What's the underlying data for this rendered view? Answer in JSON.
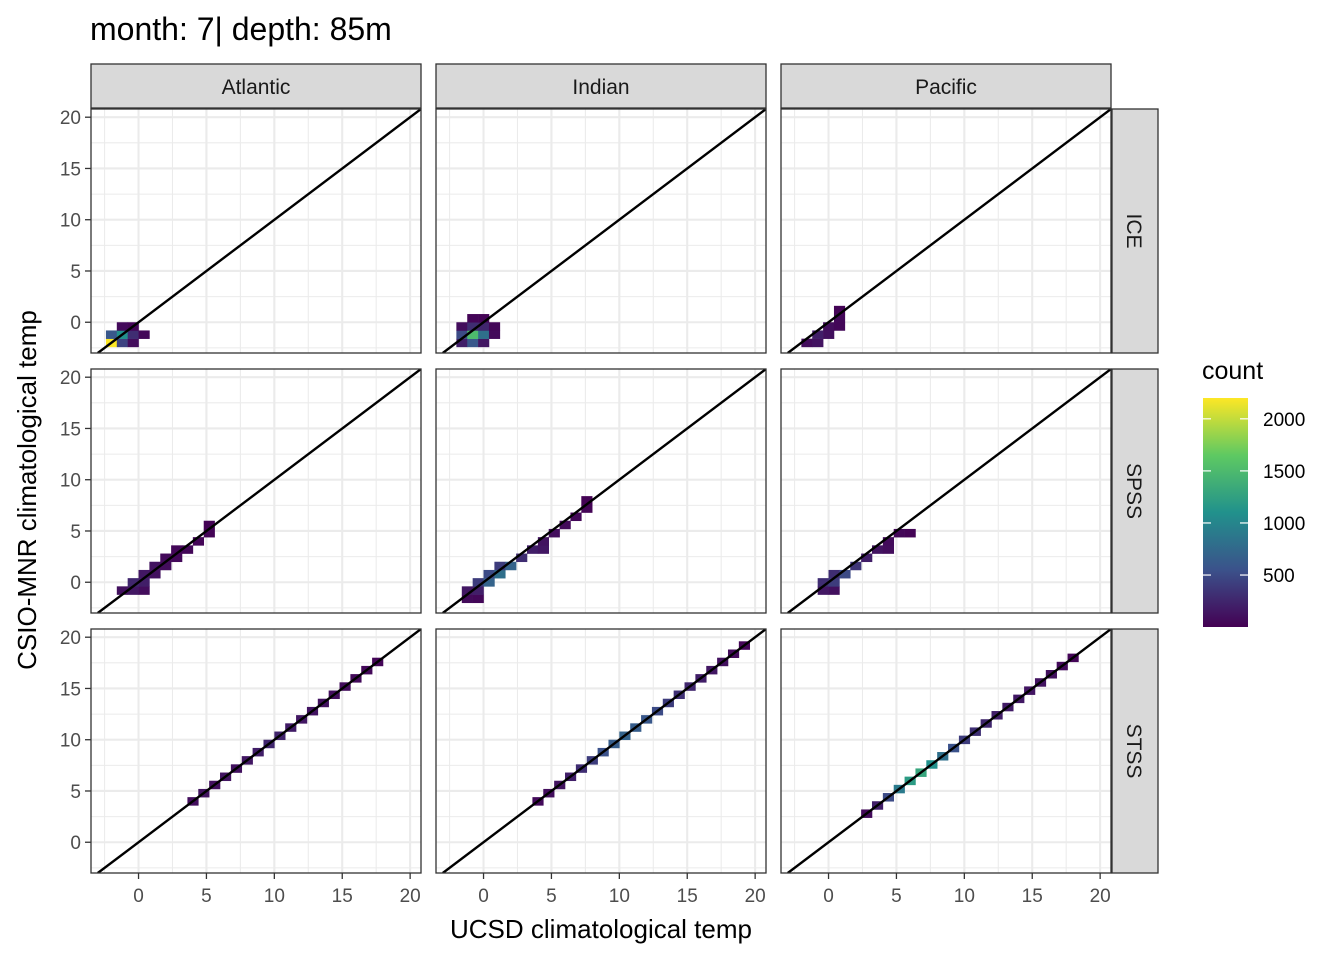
{
  "title": "month: 7| depth: 85m",
  "chart_data": {
    "type": "heatmap",
    "title": "month: 7| depth: 85m",
    "xlabel": "UCSD climatological temp",
    "ylabel": "CSIO-MNR climatological temp",
    "xlim": [
      -3.5,
      20.8
    ],
    "ylim": [
      -3,
      20.8
    ],
    "x_ticks": [
      0,
      5,
      10,
      15,
      20
    ],
    "y_ticks": [
      0,
      5,
      10,
      15,
      20
    ],
    "grid": true,
    "reference_line": "y = x",
    "columns": [
      "Atlantic",
      "Indian",
      "Pacific"
    ],
    "rows": [
      "ICE",
      "SPSS",
      "STSS"
    ],
    "bin_width": 0.8,
    "legend": {
      "title": "count",
      "position": "right",
      "colors": [
        "#440154",
        "#3b528b",
        "#21918c",
        "#5ec962",
        "#fde725"
      ],
      "range": [
        1,
        2200
      ],
      "ticks": [
        500,
        1000,
        1500,
        2000
      ]
    },
    "panels": [
      {
        "col": "Atlantic",
        "row": "ICE",
        "bins": [
          [
            -2,
            -2,
            2200
          ],
          [
            -1.2,
            -2,
            450
          ],
          [
            -0.4,
            -2,
            80
          ],
          [
            -2,
            -1.2,
            600
          ],
          [
            -1.2,
            -1.2,
            1100
          ],
          [
            -0.4,
            -1.2,
            300
          ],
          [
            0.4,
            -1.2,
            40
          ],
          [
            -1.2,
            -0.4,
            60
          ],
          [
            -0.4,
            -0.4,
            30
          ]
        ]
      },
      {
        "col": "Indian",
        "row": "ICE",
        "bins": [
          [
            -1.6,
            -2,
            200
          ],
          [
            -0.8,
            -2,
            600
          ],
          [
            0,
            -2,
            150
          ],
          [
            -1.6,
            -1.2,
            500
          ],
          [
            -0.8,
            -1.2,
            1500
          ],
          [
            0,
            -1.2,
            800
          ],
          [
            0.8,
            -1.2,
            60
          ],
          [
            -1.6,
            -0.4,
            80
          ],
          [
            -0.8,
            -0.4,
            300
          ],
          [
            0,
            -0.4,
            250
          ],
          [
            0.8,
            -0.4,
            40
          ],
          [
            -0.8,
            0.4,
            30
          ],
          [
            0,
            0.4,
            20
          ]
        ]
      },
      {
        "col": "Pacific",
        "row": "ICE",
        "bins": [
          [
            -1.6,
            -2,
            80
          ],
          [
            -0.8,
            -2,
            120
          ],
          [
            -0.8,
            -1.2,
            200
          ],
          [
            0,
            -1.2,
            100
          ],
          [
            0,
            -0.4,
            90
          ],
          [
            0.8,
            -0.4,
            40
          ],
          [
            0.8,
            0.4,
            50
          ],
          [
            0.8,
            1.2,
            20
          ]
        ]
      },
      {
        "col": "Atlantic",
        "row": "SPSS",
        "bins": [
          [
            -1.2,
            -0.8,
            100
          ],
          [
            -0.4,
            -0.8,
            150
          ],
          [
            0.4,
            -0.8,
            80
          ],
          [
            -0.4,
            0,
            250
          ],
          [
            0.4,
            0,
            200
          ],
          [
            0.4,
            0.8,
            150
          ],
          [
            1.2,
            0.8,
            100
          ],
          [
            1.2,
            1.6,
            120
          ],
          [
            2,
            1.6,
            80
          ],
          [
            2,
            2.4,
            60
          ],
          [
            2.8,
            2.4,
            50
          ],
          [
            2.8,
            3.2,
            40
          ],
          [
            3.6,
            3.2,
            40
          ],
          [
            4.4,
            4,
            30
          ],
          [
            5.2,
            4.8,
            20
          ],
          [
            5.2,
            5.6,
            15
          ]
        ]
      },
      {
        "col": "Indian",
        "row": "SPSS",
        "bins": [
          [
            -1.2,
            -1.6,
            60
          ],
          [
            -0.4,
            -1.6,
            40
          ],
          [
            -1.2,
            -0.8,
            150
          ],
          [
            -0.4,
            -0.8,
            200
          ],
          [
            -0.4,
            0,
            400
          ],
          [
            0.4,
            0,
            700
          ],
          [
            0.4,
            0.8,
            500
          ],
          [
            1.2,
            0.8,
            800
          ],
          [
            1.2,
            1.6,
            400
          ],
          [
            2,
            1.6,
            700
          ],
          [
            2.8,
            2.4,
            300
          ],
          [
            3.6,
            3.2,
            200
          ],
          [
            4.4,
            3.2,
            150
          ],
          [
            4.4,
            4,
            120
          ],
          [
            5.2,
            4.8,
            90
          ],
          [
            6,
            5.6,
            60
          ],
          [
            6.8,
            6.4,
            40
          ],
          [
            7.6,
            7.2,
            25
          ],
          [
            7.6,
            8,
            15
          ]
        ]
      },
      {
        "col": "Pacific",
        "row": "SPSS",
        "bins": [
          [
            -0.4,
            -0.8,
            150
          ],
          [
            0.4,
            -0.8,
            100
          ],
          [
            -0.4,
            0,
            300
          ],
          [
            0.4,
            0,
            400
          ],
          [
            0.4,
            0.8,
            300
          ],
          [
            1.2,
            0.8,
            500
          ],
          [
            2,
            1.6,
            350
          ],
          [
            2.8,
            2.4,
            200
          ],
          [
            3.6,
            3.2,
            120
          ],
          [
            4.4,
            3.2,
            80
          ],
          [
            4.4,
            4,
            70
          ],
          [
            5.2,
            4.8,
            40
          ],
          [
            6,
            4.8,
            20
          ]
        ]
      },
      {
        "col": "Atlantic",
        "row": "STSS",
        "bins": [
          [
            4,
            4,
            90
          ],
          [
            4.8,
            4.8,
            120
          ],
          [
            5.6,
            5.6,
            100
          ],
          [
            6.4,
            6.4,
            130
          ],
          [
            7.2,
            7.2,
            110
          ],
          [
            8,
            8,
            150
          ],
          [
            8.8,
            8.8,
            200
          ],
          [
            9.6,
            9.6,
            250
          ],
          [
            10.4,
            10.4,
            230
          ],
          [
            11.2,
            11.2,
            180
          ],
          [
            12,
            12,
            150
          ],
          [
            12.8,
            12.8,
            130
          ],
          [
            13.6,
            13.6,
            110
          ],
          [
            14.4,
            14.4,
            90
          ],
          [
            15.2,
            15.2,
            80
          ],
          [
            16,
            16,
            60
          ],
          [
            16.8,
            16.8,
            50
          ],
          [
            17.6,
            17.6,
            30
          ]
        ]
      },
      {
        "col": "Indian",
        "row": "STSS",
        "bins": [
          [
            4,
            4,
            60
          ],
          [
            4.8,
            4.8,
            90
          ],
          [
            5.6,
            5.6,
            120
          ],
          [
            6.4,
            6.4,
            200
          ],
          [
            7.2,
            7.2,
            300
          ],
          [
            8,
            8,
            400
          ],
          [
            8.8,
            8.8,
            550
          ],
          [
            9.6,
            9.6,
            650
          ],
          [
            10.4,
            10.4,
            700
          ],
          [
            11.2,
            11.2,
            650
          ],
          [
            12,
            12,
            600
          ],
          [
            12.8,
            12.8,
            500
          ],
          [
            13.6,
            13.6,
            400
          ],
          [
            14.4,
            14.4,
            320
          ],
          [
            15.2,
            15.2,
            250
          ],
          [
            16,
            16,
            200
          ],
          [
            16.8,
            16.8,
            150
          ],
          [
            17.6,
            17.6,
            100
          ],
          [
            18.4,
            18.4,
            60
          ],
          [
            19.2,
            19.2,
            30
          ]
        ]
      },
      {
        "col": "Pacific",
        "row": "STSS",
        "bins": [
          [
            2.8,
            2.8,
            60
          ],
          [
            3.6,
            3.6,
            200
          ],
          [
            4.4,
            4.4,
            500
          ],
          [
            5.2,
            5.2,
            900
          ],
          [
            6,
            6,
            1200
          ],
          [
            6.8,
            6.8,
            1300
          ],
          [
            7.6,
            7.6,
            1100
          ],
          [
            8.4,
            8.4,
            800
          ],
          [
            9.2,
            9.2,
            550
          ],
          [
            10,
            10,
            400
          ],
          [
            10.8,
            10.8,
            320
          ],
          [
            11.6,
            11.6,
            250
          ],
          [
            12.4,
            12.4,
            200
          ],
          [
            13.2,
            13.2,
            180
          ],
          [
            14,
            14,
            160
          ],
          [
            14.8,
            14.8,
            140
          ],
          [
            15.6,
            15.6,
            120
          ],
          [
            16.4,
            16.4,
            100
          ],
          [
            17.2,
            17.2,
            60
          ],
          [
            18,
            18,
            30
          ]
        ]
      }
    ]
  }
}
